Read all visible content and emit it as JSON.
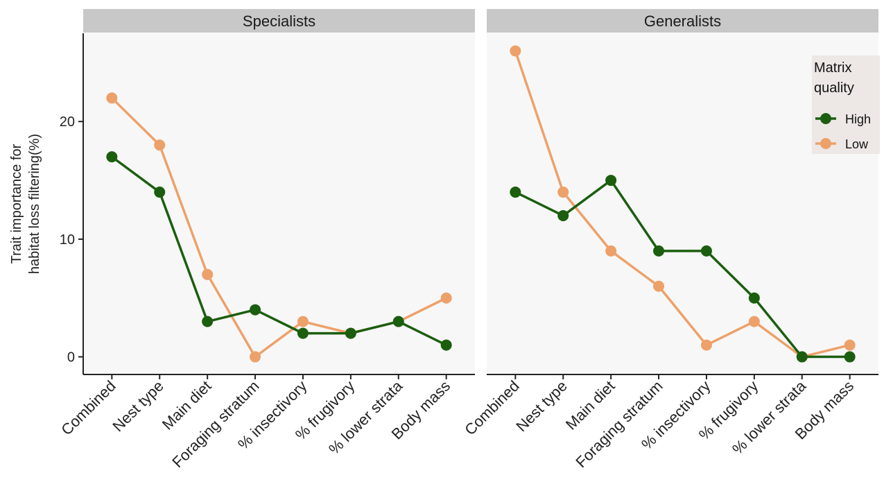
{
  "chart_data": {
    "type": "line",
    "ylabel": [
      "Trait importance for",
      "habitat loss filtering(%)"
    ],
    "ylim": [
      -1.5,
      27.5
    ],
    "yticks": [
      0,
      10,
      20
    ],
    "categories": [
      "Combined",
      "Nest type",
      "Main diet",
      "Foraging stratum",
      "% insectivory",
      "% frugivory",
      "% lower strata",
      "Body mass"
    ],
    "legend": {
      "title": [
        "Matrix",
        "quality"
      ],
      "placement": "right",
      "entries": [
        {
          "name": "High",
          "color": "#1b5e0f"
        },
        {
          "name": "Low",
          "color": "#eda16a"
        }
      ]
    },
    "panels": [
      {
        "title": "Specialists",
        "series": [
          {
            "name": "High",
            "color": "#1b5e0f",
            "values": [
              17,
              14,
              3,
              4,
              2,
              2,
              3,
              1
            ]
          },
          {
            "name": "Low",
            "color": "#eda16a",
            "values": [
              22,
              18,
              7,
              0,
              3,
              2,
              3,
              5
            ]
          }
        ]
      },
      {
        "title": "Generalists",
        "series": [
          {
            "name": "High",
            "color": "#1b5e0f",
            "values": [
              14,
              12,
              15,
              9,
              9,
              5,
              0,
              0
            ]
          },
          {
            "name": "Low",
            "color": "#eda16a",
            "values": [
              26,
              14,
              9,
              6,
              1,
              3,
              0,
              1
            ]
          }
        ]
      }
    ],
    "grid": false
  }
}
